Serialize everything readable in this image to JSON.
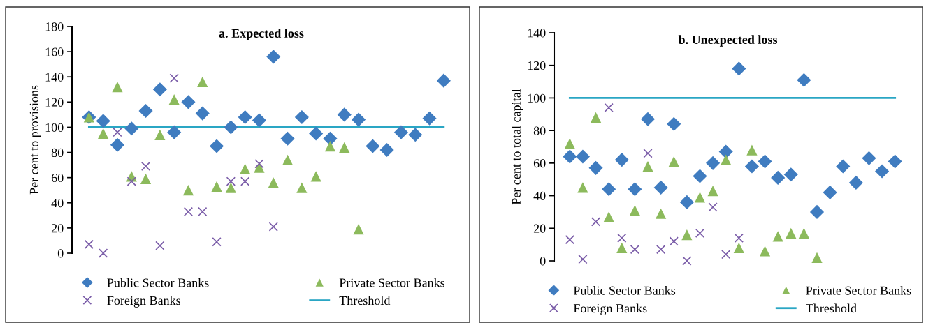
{
  "chart_data": [
    {
      "type": "scatter",
      "title": "a. Expected loss",
      "ylabel": "Per cent to provisions",
      "categories": [
        null,
        null,
        null,
        null,
        null,
        null,
        null,
        null,
        null,
        null,
        null,
        null,
        null,
        null,
        null,
        null,
        null,
        null,
        null,
        null,
        null,
        null,
        null,
        null,
        null,
        null
      ],
      "ylim": [
        0,
        180
      ],
      "yticks": [
        0,
        20,
        40,
        60,
        80,
        100,
        120,
        140,
        160,
        180
      ],
      "tick_labels": "y",
      "grid": false,
      "legend": "bottom",
      "series": [
        {
          "name": "Public Sector Banks",
          "type": "scatter",
          "marker": "diamond",
          "color": "#3f7cc0",
          "values": [
            108,
            105,
            86,
            99,
            113,
            130,
            96,
            120,
            111,
            85,
            100,
            108,
            105.5,
            156,
            91,
            108,
            95,
            91,
            110,
            106,
            85,
            82,
            96,
            94,
            107,
            137
          ]
        },
        {
          "name": "Private Sector Banks",
          "type": "scatter",
          "marker": "triangle",
          "color": "#8cba5c",
          "values": [
            108,
            95,
            132,
            61,
            59,
            94,
            122,
            50,
            136,
            53,
            52,
            67,
            68,
            56,
            74,
            52,
            61,
            85,
            84,
            19,
            null,
            null,
            null,
            null,
            null,
            null
          ]
        },
        {
          "name": "Foreign Banks",
          "type": "scatter",
          "marker": "cross",
          "color": "#7a5ca8",
          "values": [
            7,
            0,
            96,
            57,
            69,
            6,
            139,
            33,
            33,
            9,
            57,
            57,
            71,
            21,
            null,
            null,
            null,
            null,
            null,
            null,
            null,
            null,
            null,
            null,
            null,
            null
          ]
        },
        {
          "name": "Threshold",
          "type": "line",
          "marker": "none",
          "line_style": "solid",
          "color": "#2aa6c4",
          "values": [
            100,
            100,
            100,
            100,
            100,
            100,
            100,
            100,
            100,
            100,
            100,
            100,
            100,
            100,
            100,
            100,
            100,
            100,
            100,
            100,
            100,
            100,
            100,
            100,
            100,
            100
          ]
        }
      ]
    },
    {
      "type": "scatter",
      "title": "b. Unexpected loss",
      "ylabel": "Per cent to total capital",
      "categories": [
        null,
        null,
        null,
        null,
        null,
        null,
        null,
        null,
        null,
        null,
        null,
        null,
        null,
        null,
        null,
        null,
        null,
        null,
        null,
        null,
        null,
        null,
        null,
        null,
        null,
        null
      ],
      "ylim": [
        0,
        140
      ],
      "yticks": [
        0,
        20,
        40,
        60,
        80,
        100,
        120,
        140
      ],
      "tick_labels": "y",
      "grid": false,
      "legend": "bottom",
      "series": [
        {
          "name": "Public Sector Banks",
          "type": "scatter",
          "marker": "diamond",
          "color": "#3f7cc0",
          "values": [
            64,
            64,
            57,
            44,
            62,
            44,
            87,
            45,
            84,
            36,
            52,
            60,
            67,
            118,
            58,
            61,
            51,
            53,
            111,
            30,
            42,
            58,
            48,
            63,
            55,
            61
          ]
        },
        {
          "name": "Private Sector Banks",
          "type": "scatter",
          "marker": "triangle",
          "color": "#8cba5c",
          "values": [
            72,
            45,
            88,
            27,
            8,
            31,
            58,
            29,
            61,
            16,
            39,
            43,
            62,
            8,
            68,
            6,
            15,
            17,
            17,
            2,
            null,
            null,
            null,
            null,
            null,
            null
          ]
        },
        {
          "name": "Foreign Banks",
          "type": "scatter",
          "marker": "cross",
          "color": "#7a5ca8",
          "values": [
            13,
            1,
            24,
            94,
            14,
            7,
            66,
            7,
            12,
            0,
            17,
            33,
            4,
            14,
            null,
            null,
            null,
            null,
            null,
            null,
            null,
            null,
            null,
            null,
            null,
            null
          ]
        },
        {
          "name": "Threshold",
          "type": "line",
          "marker": "none",
          "line_style": "solid",
          "color": "#2aa6c4",
          "values": [
            100,
            100,
            100,
            100,
            100,
            100,
            100,
            100,
            100,
            100,
            100,
            100,
            100,
            100,
            100,
            100,
            100,
            100,
            100,
            100,
            100,
            100,
            100,
            100,
            100,
            100
          ]
        }
      ]
    }
  ]
}
